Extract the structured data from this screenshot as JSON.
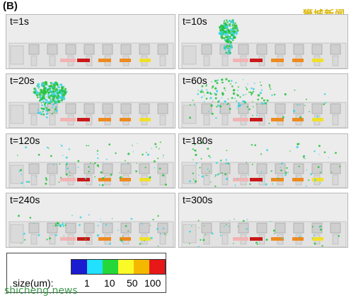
{
  "figure": {
    "label": "(B)",
    "watermark_cn": "狮城新闻",
    "watermark_url": "shicheng.news"
  },
  "colors": {
    "frame_bg": "#ececec",
    "block": "#cfcfcf",
    "block_edge": "#9a9a9a",
    "heater_red": "#cc1818",
    "heater_orange": "#ee8a1e",
    "heater_yellow": "#f1e02a",
    "heater_pink": "#f2b3b3",
    "plume_cyan": "#35d3e8",
    "plume_green": "#27c23a"
  },
  "panels": [
    {
      "time": "t=1s",
      "plume": "none"
    },
    {
      "time": "t=10s",
      "plume": "tall-column"
    },
    {
      "time": "t=20s",
      "plume": "dense-cloud"
    },
    {
      "time": "t=60s",
      "plume": "dispersing"
    },
    {
      "time": "t=120s",
      "plume": "scattered"
    },
    {
      "time": "t=180s",
      "plume": "scattered"
    },
    {
      "time": "t=240s",
      "plume": "settling"
    },
    {
      "time": "t=300s",
      "plume": "settled"
    }
  ],
  "legend": {
    "title": "size(um):",
    "ticks": [
      "1",
      "10",
      "50",
      "100"
    ],
    "colors": [
      "#1b1bd0",
      "#22e0ff",
      "#25d83a",
      "#fafa28",
      "#f5b800",
      "#e81818"
    ]
  }
}
